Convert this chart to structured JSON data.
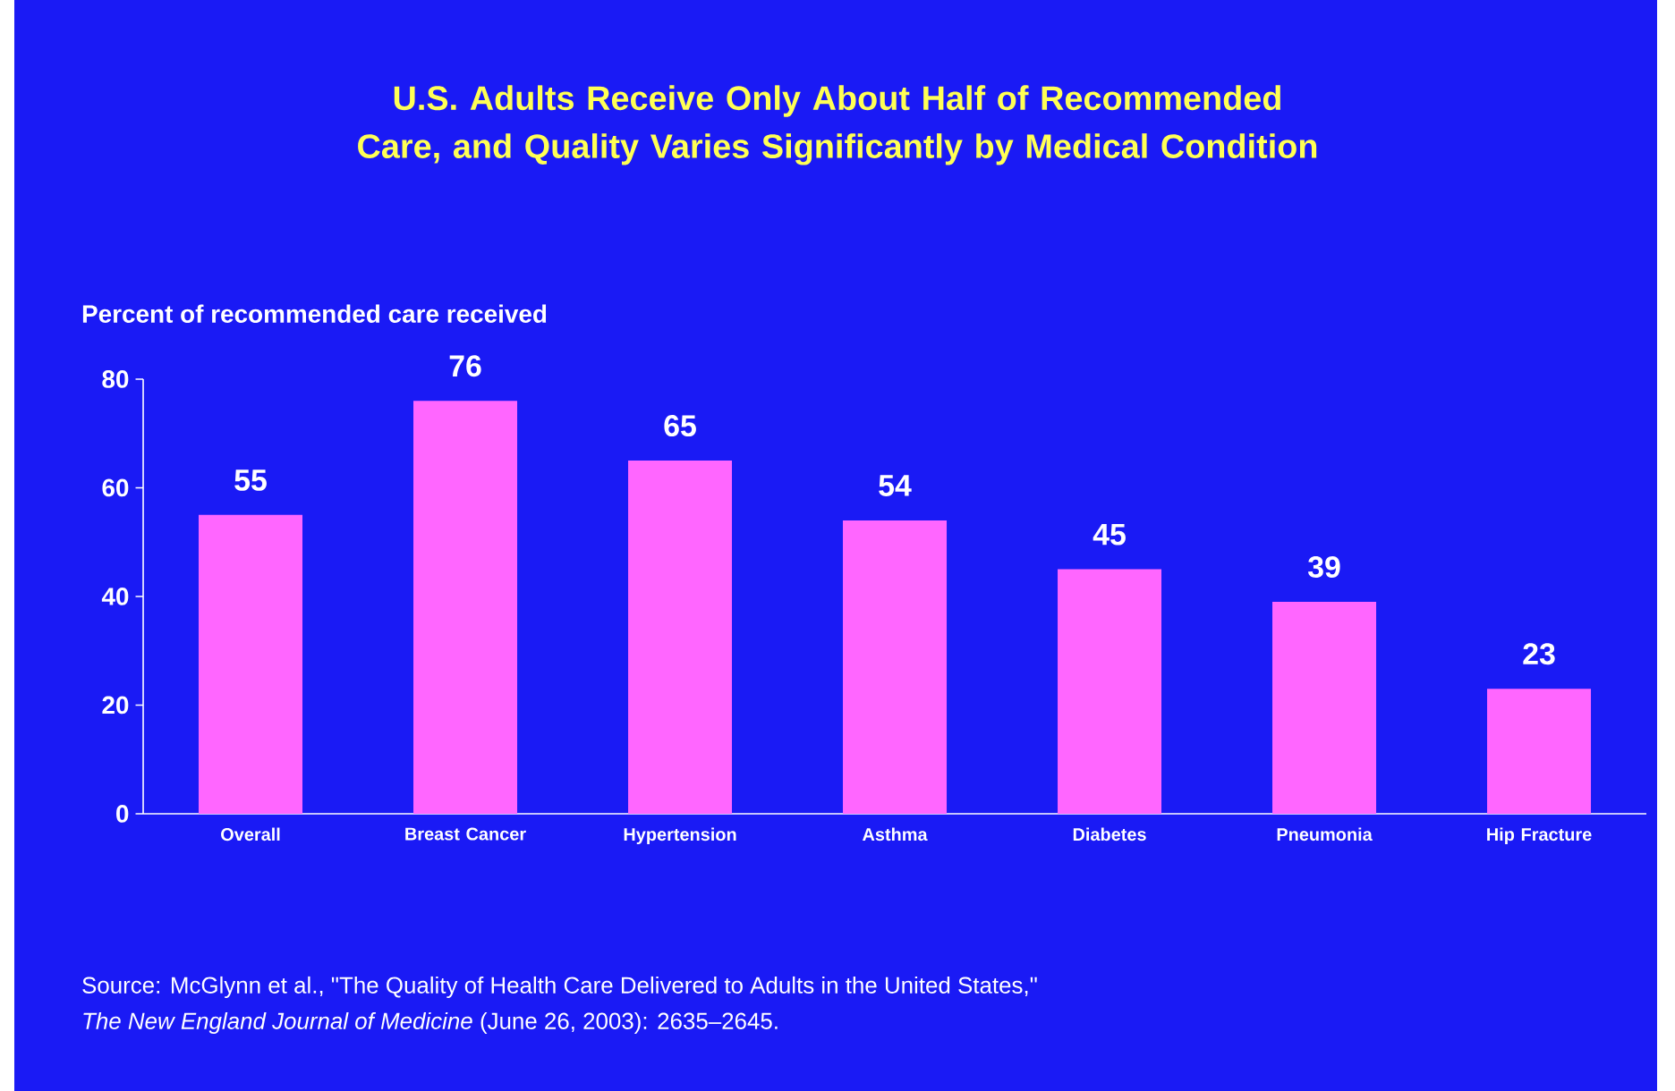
{
  "chart_data": {
    "type": "bar",
    "title": "U.S. Adults Receive Only About Half of Recommended Care, and Quality Varies Significantly by Medical Condition",
    "ylabel": "Percent of recommended care received",
    "categories": [
      "Overall",
      "Breast Cancer",
      "Hypertension",
      "Asthma",
      "Diabetes",
      "Pneumonia",
      "Hip Fracture"
    ],
    "values": [
      55,
      76,
      65,
      54,
      45,
      39,
      23
    ],
    "color": "#ff66ff",
    "ylim": [
      0,
      80
    ],
    "yticks": [
      0,
      20,
      40,
      60,
      80
    ],
    "grid": false,
    "data_labels": true,
    "annotations": [
      "Source: McGlynn et al., \"The Quality of Health Care Delivered to Adults in the United States,\"",
      "*The New England Journal of Medicine* (June 26, 2003): 2635–2645."
    ]
  }
}
